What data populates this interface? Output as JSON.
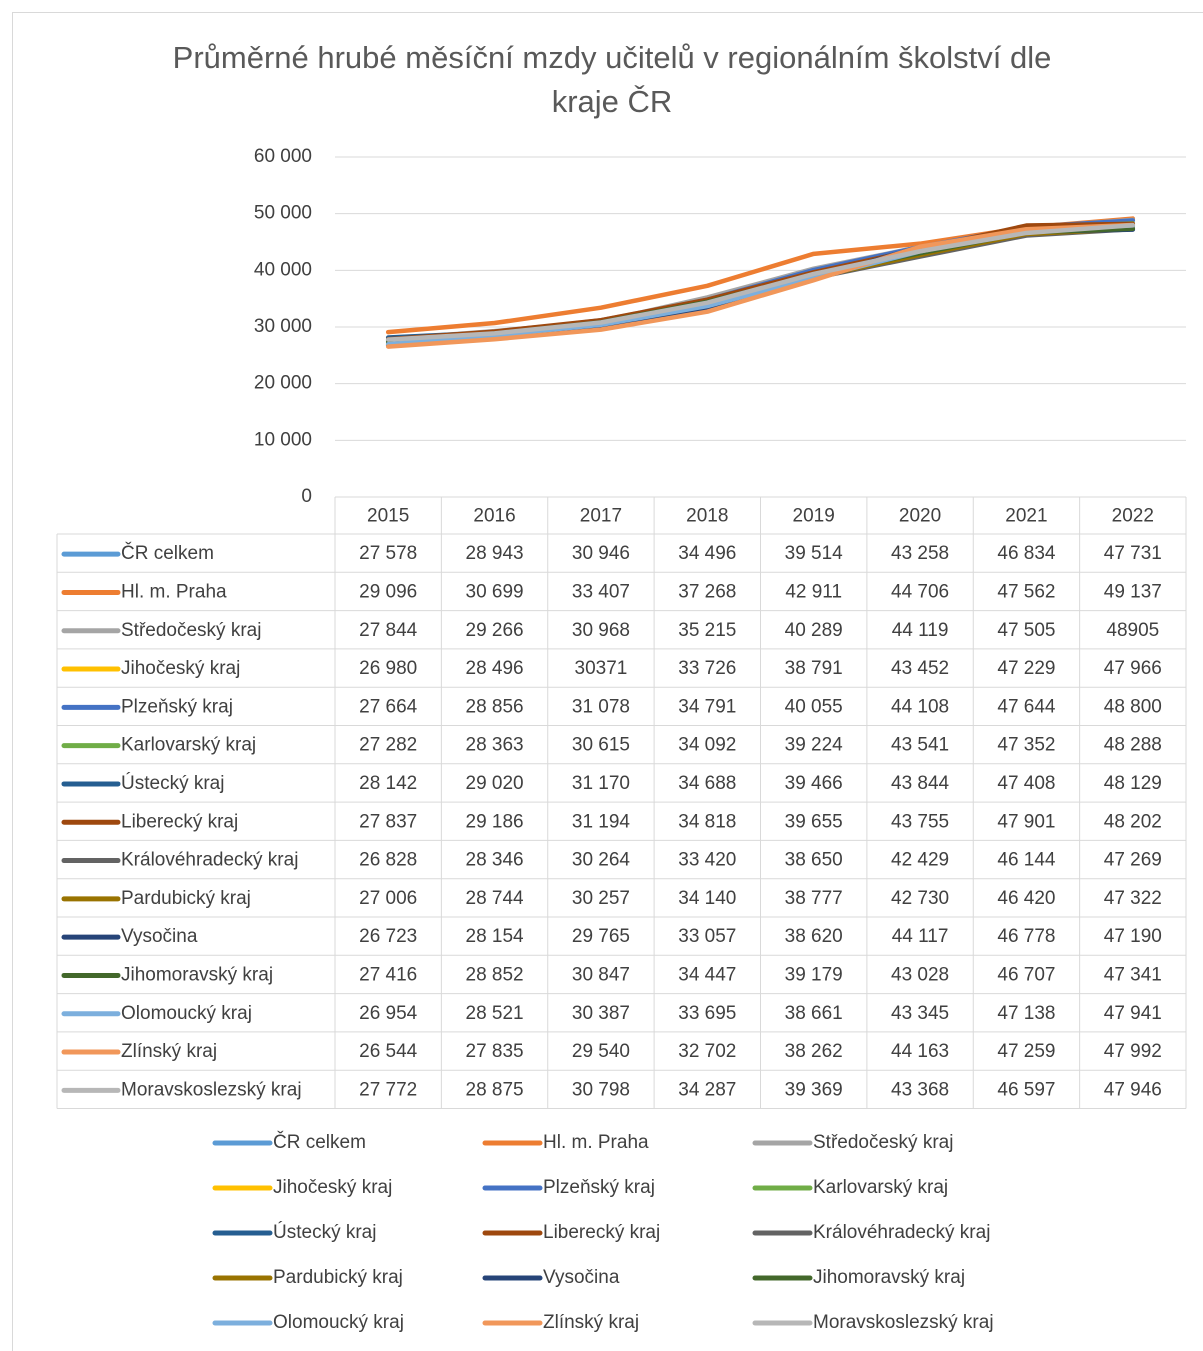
{
  "chart_data": {
    "type": "line",
    "title": "Průměrné hrubé měsíční mzdy učitelů v regionálním školství dle kraje ČR",
    "categories": [
      "2015",
      "2016",
      "2017",
      "2018",
      "2019",
      "2020",
      "2021",
      "2022"
    ],
    "ylim": [
      0,
      60000
    ],
    "yticks": [
      0,
      {
        "value": 10000,
        "label": "10 000"
      },
      {
        "value": 20000,
        "label": "20 000"
      },
      {
        "value": 30000,
        "label": "30 000"
      },
      {
        "value": 40000,
        "label": "40 000"
      },
      {
        "value": 50000,
        "label": "50 000"
      },
      {
        "value": 60000,
        "label": "60 000"
      }
    ],
    "grid": true,
    "legend": "bottom",
    "series": [
      {
        "name": "ČR celkem",
        "color": "#5b9bd5",
        "values": [
          27578,
          28943,
          30946,
          34496,
          39514,
          43258,
          46834,
          47731
        ],
        "value_labels": [
          "27 578",
          "28 943",
          "30 946",
          "34 496",
          "39 514",
          "43 258",
          "46 834",
          "47 731"
        ]
      },
      {
        "name": "Hl. m. Praha",
        "color": "#ed7d31",
        "values": [
          29096,
          30699,
          33407,
          37268,
          42911,
          44706,
          47562,
          49137
        ],
        "value_labels": [
          "29 096",
          "30 699",
          "33 407",
          "37 268",
          "42 911",
          "44 706",
          "47 562",
          "49 137"
        ]
      },
      {
        "name": "Středočeský kraj",
        "color": "#a5a5a5",
        "values": [
          27844,
          29266,
          30968,
          35215,
          40289,
          44119,
          47505,
          48905
        ],
        "value_labels": [
          "27 844",
          "29 266",
          "30 968",
          "35 215",
          "40 289",
          "44 119",
          "47 505",
          "48905"
        ]
      },
      {
        "name": "Jihočeský kraj",
        "color": "#ffc000",
        "values": [
          26980,
          28496,
          30371,
          33726,
          38791,
          43452,
          47229,
          47966
        ],
        "value_labels": [
          "26 980",
          "28 496",
          "30371",
          "33 726",
          "38 791",
          "43 452",
          "47 229",
          "47 966"
        ]
      },
      {
        "name": "Plzeňský kraj",
        "color": "#4472c4",
        "values": [
          27664,
          28856,
          31078,
          34791,
          40055,
          44108,
          47644,
          48800
        ],
        "value_labels": [
          "27 664",
          "28 856",
          "31 078",
          "34 791",
          "40 055",
          "44 108",
          "47 644",
          "48 800"
        ]
      },
      {
        "name": "Karlovarský kraj",
        "color": "#70ad47",
        "values": [
          27282,
          28363,
          30615,
          34092,
          39224,
          43541,
          47352,
          48288
        ],
        "value_labels": [
          "27 282",
          "28 363",
          "30 615",
          "34 092",
          "39 224",
          "43 541",
          "47 352",
          "48 288"
        ]
      },
      {
        "name": "Ústecký kraj",
        "color": "#255e91",
        "values": [
          28142,
          29020,
          31170,
          34688,
          39466,
          43844,
          47408,
          48129
        ],
        "value_labels": [
          "28 142",
          "29 020",
          "31 170",
          "34 688",
          "39 466",
          "43 844",
          "47 408",
          "48 129"
        ]
      },
      {
        "name": "Liberecký kraj",
        "color": "#9e480e",
        "values": [
          27837,
          29186,
          31194,
          34818,
          39655,
          43755,
          47901,
          48202
        ],
        "value_labels": [
          "27 837",
          "29 186",
          "31 194",
          "34 818",
          "39 655",
          "43 755",
          "47 901",
          "48 202"
        ]
      },
      {
        "name": "Královéhradecký kraj",
        "color": "#636363",
        "values": [
          26828,
          28346,
          30264,
          33420,
          38650,
          42429,
          46144,
          47269
        ],
        "value_labels": [
          "26 828",
          "28 346",
          "30 264",
          "33 420",
          "38 650",
          "42 429",
          "46 144",
          "47 269"
        ]
      },
      {
        "name": "Pardubický kraj",
        "color": "#997300",
        "values": [
          27006,
          28744,
          30257,
          34140,
          38777,
          42730,
          46420,
          47322
        ],
        "value_labels": [
          "27 006",
          "28 744",
          "30 257",
          "34 140",
          "38 777",
          "42 730",
          "46 420",
          "47 322"
        ]
      },
      {
        "name": "Vysočina",
        "color": "#264478",
        "values": [
          26723,
          28154,
          29765,
          33057,
          38620,
          44117,
          46778,
          47190
        ],
        "value_labels": [
          "26 723",
          "28 154",
          "29 765",
          "33 057",
          "38 620",
          "44 117",
          "46 778",
          "47 190"
        ]
      },
      {
        "name": "Jihomoravský kraj",
        "color": "#43682b",
        "values": [
          27416,
          28852,
          30847,
          34447,
          39179,
          43028,
          46707,
          47341
        ],
        "value_labels": [
          "27 416",
          "28 852",
          "30 847",
          "34 447",
          "39 179",
          "43 028",
          "46 707",
          "47 341"
        ]
      },
      {
        "name": "Olomoucký kraj",
        "color": "#7cafdd",
        "values": [
          26954,
          28521,
          30387,
          33695,
          38661,
          43345,
          47138,
          47941
        ],
        "value_labels": [
          "26 954",
          "28 521",
          "30 387",
          "33 695",
          "38 661",
          "43 345",
          "47 138",
          "47 941"
        ]
      },
      {
        "name": "Zlínský kraj",
        "color": "#f1975a",
        "values": [
          26544,
          27835,
          29540,
          32702,
          38262,
          44163,
          47259,
          47992
        ],
        "value_labels": [
          "26 544",
          "27 835",
          "29 540",
          "32 702",
          "38 262",
          "44 163",
          "47 259",
          "47 992"
        ]
      },
      {
        "name": "Moravskoslezský kraj",
        "color": "#b7b7b7",
        "values": [
          27772,
          28875,
          30798,
          34287,
          39369,
          43368,
          46597,
          47946
        ],
        "value_labels": [
          "27 772",
          "28 875",
          "30 798",
          "34 287",
          "39 369",
          "43 368",
          "46 597",
          "47 946"
        ]
      }
    ]
  }
}
